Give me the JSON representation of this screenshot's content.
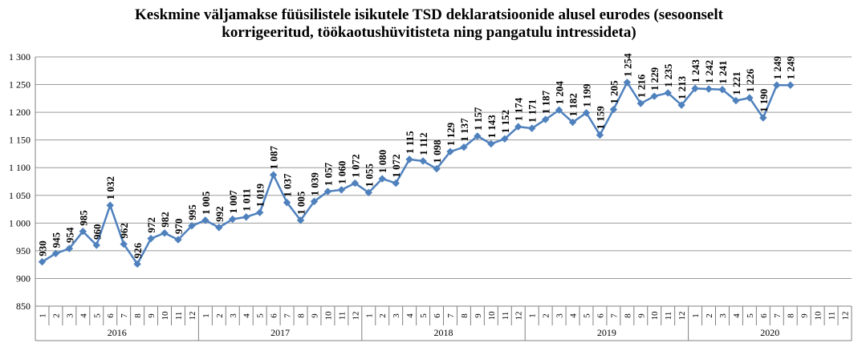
{
  "chart_data": {
    "type": "line",
    "title": "Keskmine väljamakse füüsilistele isikutele TSD deklaratsioonide alusel eurodes (sesoonselt korrigeeritud, töökaotushüvitisteta ning pangatulu intressideta)",
    "title_lines": [
      "Keskmine väljamakse füüsilistele isikutele TSD deklaratsioonide alusel eurodes (sesoonselt",
      "korrigeeritud, töökaotushüvitisteta ning pangatulu intressideta)"
    ],
    "xlabel": "",
    "ylabel": "",
    "ylim": [
      850,
      1300
    ],
    "y_ticks": [
      850,
      900,
      950,
      1000,
      1050,
      1100,
      1150,
      1200,
      1250,
      1300
    ],
    "y_tick_labels": [
      "850",
      "900",
      "950",
      "1 000",
      "1 050",
      "1 100",
      "1 150",
      "1 200",
      "1 250",
      "1 300"
    ],
    "grid": true,
    "years": [
      "2016",
      "2017",
      "2018",
      "2019",
      "2020"
    ],
    "months": [
      "1",
      "2",
      "3",
      "4",
      "5",
      "6",
      "7",
      "8",
      "9",
      "10",
      "11",
      "12"
    ],
    "series_color": "#4F81BD",
    "values": [
      930,
      945,
      954,
      985,
      960,
      1032,
      962,
      926,
      972,
      982,
      970,
      995,
      1005,
      992,
      1007,
      1011,
      1019,
      1087,
      1037,
      1005,
      1039,
      1057,
      1060,
      1072,
      1055,
      1080,
      1072,
      1115,
      1112,
      1098,
      1129,
      1137,
      1157,
      1143,
      1152,
      1174,
      1171,
      1187,
      1204,
      1182,
      1199,
      1159,
      1205,
      1254,
      1216,
      1229,
      1235,
      1213,
      1243,
      1242,
      1241,
      1221,
      1226,
      1190,
      1249,
      1249
    ],
    "data_labels": [
      "930",
      "945",
      "954",
      "985",
      "960",
      "1 032",
      "962",
      "926",
      "972",
      "982",
      "970",
      "995",
      "1 005",
      "992",
      "1 007",
      "1 011",
      "1 019",
      "1 087",
      "1 037",
      "1 005",
      "1 039",
      "1 057",
      "1 060",
      "1 072",
      "1 055",
      "1 080",
      "1 072",
      "1 115",
      "1 112",
      "1 098",
      "1 129",
      "1 137",
      "1 157",
      "1 143",
      "1 152",
      "1 174",
      "1 171",
      "1 187",
      "1 204",
      "1 182",
      "1 199",
      "1 159",
      "1 205",
      "1 254",
      "1 216",
      "1 229",
      "1 235",
      "1 213",
      "1 243",
      "1 242",
      "1 241",
      "1 221",
      "1 226",
      "1 190",
      "1 249",
      "1 249"
    ]
  }
}
